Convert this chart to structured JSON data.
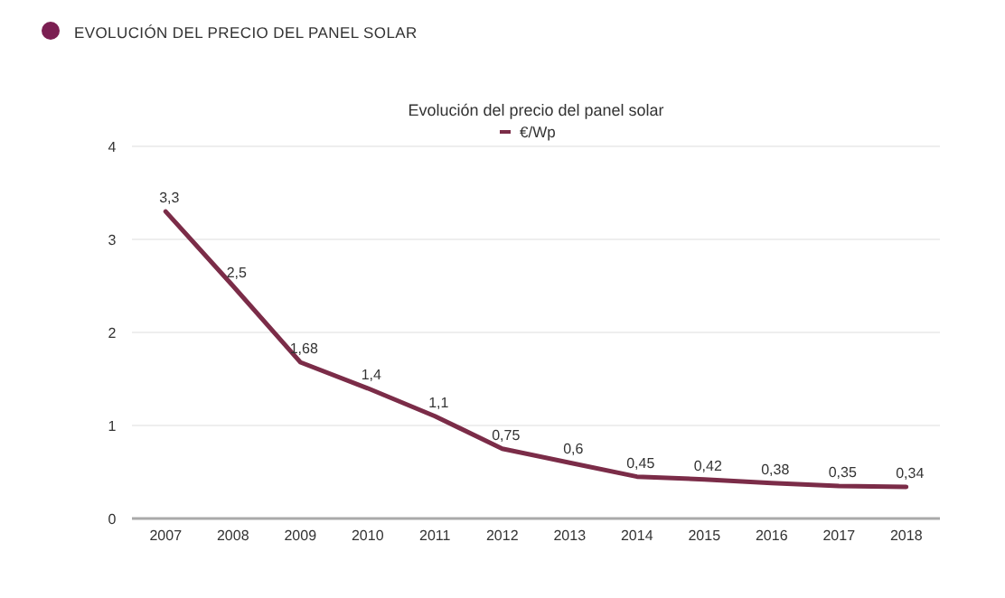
{
  "chart_data": {
    "type": "line",
    "title": "EVOLUCIÓN DEL PRECIO DEL PANEL SOLAR",
    "subtitle": "Evolución del precio del panel solar",
    "categories": [
      "2007",
      "2008",
      "2009",
      "2010",
      "2011",
      "2012",
      "2013",
      "2014",
      "2015",
      "2016",
      "2017",
      "2018"
    ],
    "series": [
      {
        "name": "€/Wp",
        "color": "#7b2c48",
        "values": [
          3.3,
          2.5,
          1.68,
          1.4,
          1.1,
          0.75,
          0.6,
          0.45,
          0.42,
          0.38,
          0.35,
          0.34
        ],
        "value_labels": [
          "3,3",
          "2,5",
          "1,68",
          "1,4",
          "1,1",
          "0,75",
          "0,6",
          "0,45",
          "0,42",
          "0,38",
          "0,35",
          "0,34"
        ]
      }
    ],
    "ylim": [
      0,
      4
    ],
    "yticks": [
      0,
      1,
      2,
      3,
      4
    ],
    "grid": "y",
    "legend": "top",
    "marker": "none",
    "line_style": "solid"
  }
}
